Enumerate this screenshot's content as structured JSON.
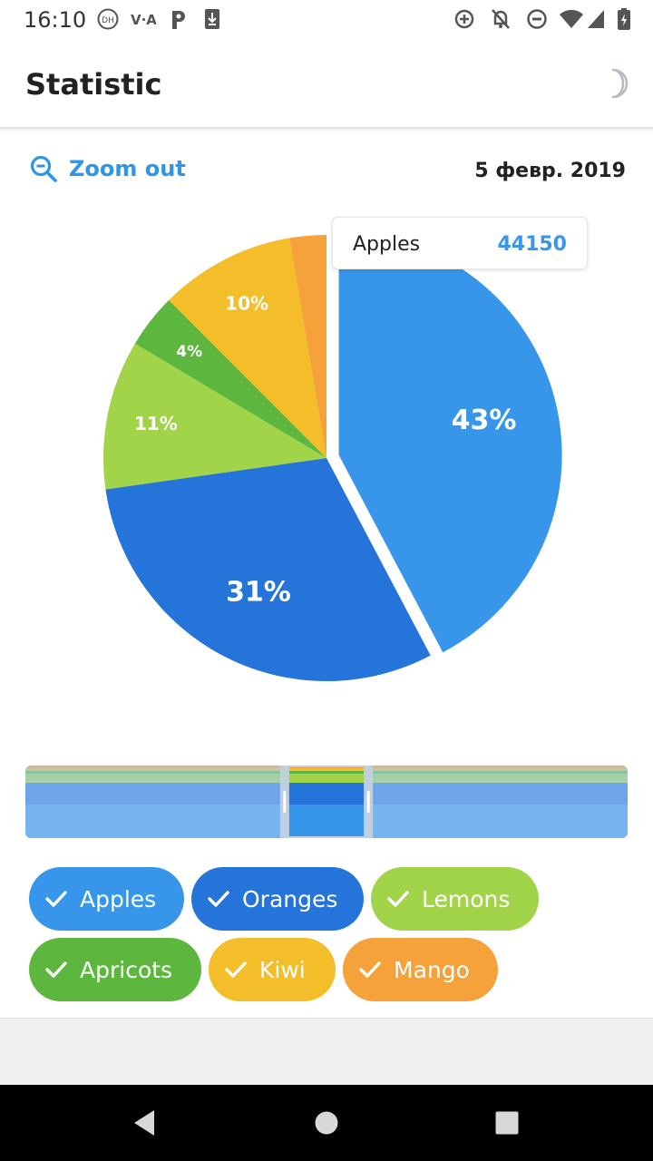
{
  "status_bar": {
    "time": "16:10",
    "left_icons": [
      "dh-icon",
      "vpn-icon",
      "parking-icon",
      "download-icon"
    ],
    "right_icons": [
      "data-saver-icon",
      "notifications-off-icon",
      "do-not-disturb-icon",
      "wifi-icon",
      "signal-icon",
      "battery-icon"
    ]
  },
  "app_bar": {
    "title": "Statistic",
    "theme_icon": "moon-icon"
  },
  "toolbar": {
    "zoom_label": "Zoom out",
    "date": "5 февр. 2019"
  },
  "tooltip": {
    "name": "Apples",
    "value": "44150",
    "value_color": "#3897e8"
  },
  "chart_data": {
    "type": "pie",
    "title": "",
    "start_angle_deg": 0,
    "slices": [
      {
        "name": "Apples",
        "value": 43,
        "label": "43%",
        "color": "#3796ea",
        "exploded": true
      },
      {
        "name": "Oranges",
        "value": 31,
        "label": "31%",
        "color": "#2574da",
        "exploded": false
      },
      {
        "name": "Lemons",
        "value": 11,
        "label": "11%",
        "color": "#a1d449",
        "exploded": false
      },
      {
        "name": "Apricots",
        "value": 4,
        "label": "4%",
        "color": "#5db73e",
        "exploded": false
      },
      {
        "name": "Kiwi",
        "value": 10,
        "label": "10%",
        "color": "#f4bd2a",
        "exploded": false
      },
      {
        "name": "Mango",
        "value": 2.7,
        "label": "",
        "color": "#f5a23b",
        "exploded": false
      }
    ],
    "legend": "bottom"
  },
  "navigator": {
    "window_start": 0.438,
    "window_end": 0.562
  },
  "legend_chips": [
    {
      "label": "Apples",
      "color": "#3796ea",
      "checked": true
    },
    {
      "label": "Oranges",
      "color": "#2574da",
      "checked": true
    },
    {
      "label": "Lemons",
      "color": "#a1d449",
      "checked": true
    },
    {
      "label": "Apricots",
      "color": "#5db73e",
      "checked": true
    },
    {
      "label": "Kiwi",
      "color": "#f4bd2a",
      "checked": true
    },
    {
      "label": "Mango",
      "color": "#f5a23b",
      "checked": true
    }
  ],
  "nav_bar": {
    "icons": [
      "back-icon",
      "home-icon",
      "recents-icon"
    ]
  }
}
